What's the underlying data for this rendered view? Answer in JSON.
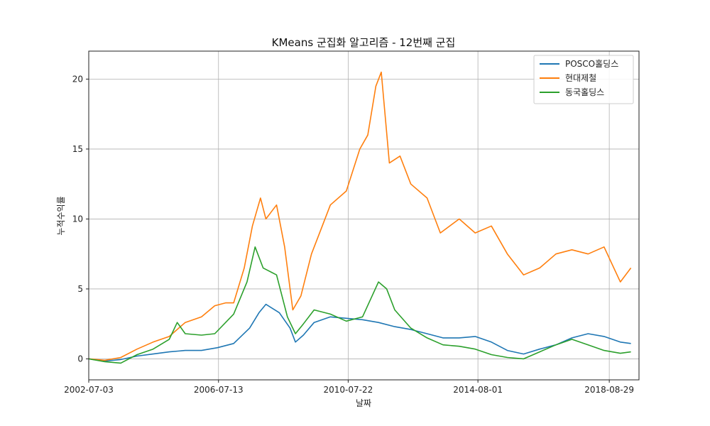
{
  "chart_data": {
    "type": "line",
    "title": "KMeans 군집화 알고리즘 - 12번째 군집",
    "xlabel": "날짜",
    "ylabel": "누적수익률",
    "x_ticks": [
      "2002-07-03",
      "2006-07-13",
      "2010-07-22",
      "2014-08-01",
      "2018-08-29"
    ],
    "y_ticks": [
      0,
      5,
      10,
      15,
      20
    ],
    "y_tick_labels": [
      "0",
      "5",
      "10",
      "15",
      "20"
    ],
    "ylim": [
      -1.5,
      22
    ],
    "x_range": [
      "2002-07-03",
      "2019-08-01"
    ],
    "grid": true,
    "legend_position": "top-right",
    "series": [
      {
        "name": "POSCO홀딩스",
        "color": "#1f77b4",
        "points": [
          [
            "2002-07-03",
            0.0
          ],
          [
            "2003-01-01",
            -0.15
          ],
          [
            "2003-07-01",
            -0.05
          ],
          [
            "2004-01-01",
            0.2
          ],
          [
            "2004-07-01",
            0.35
          ],
          [
            "2005-01-01",
            0.5
          ],
          [
            "2005-07-01",
            0.6
          ],
          [
            "2006-01-01",
            0.6
          ],
          [
            "2006-07-01",
            0.8
          ],
          [
            "2007-01-01",
            1.1
          ],
          [
            "2007-07-01",
            2.2
          ],
          [
            "2007-10-15",
            3.3
          ],
          [
            "2008-01-01",
            3.9
          ],
          [
            "2008-06-01",
            3.3
          ],
          [
            "2008-10-01",
            2.2
          ],
          [
            "2008-12-01",
            1.2
          ],
          [
            "2009-03-01",
            1.7
          ],
          [
            "2009-07-01",
            2.6
          ],
          [
            "2010-01-01",
            3.0
          ],
          [
            "2010-07-01",
            2.9
          ],
          [
            "2011-01-01",
            2.8
          ],
          [
            "2011-07-01",
            2.6
          ],
          [
            "2012-01-01",
            2.3
          ],
          [
            "2012-07-01",
            2.1
          ],
          [
            "2013-01-01",
            1.8
          ],
          [
            "2013-07-01",
            1.5
          ],
          [
            "2014-01-01",
            1.5
          ],
          [
            "2014-07-01",
            1.6
          ],
          [
            "2015-01-01",
            1.2
          ],
          [
            "2015-07-01",
            0.6
          ],
          [
            "2016-01-01",
            0.35
          ],
          [
            "2016-07-01",
            0.7
          ],
          [
            "2017-01-01",
            1.0
          ],
          [
            "2017-07-01",
            1.5
          ],
          [
            "2018-01-01",
            1.8
          ],
          [
            "2018-07-01",
            1.6
          ],
          [
            "2019-01-01",
            1.2
          ],
          [
            "2019-05-01",
            1.1
          ]
        ]
      },
      {
        "name": "현대제철",
        "color": "#ff7f0e",
        "points": [
          [
            "2002-07-03",
            0.0
          ],
          [
            "2003-01-01",
            -0.1
          ],
          [
            "2003-07-01",
            0.1
          ],
          [
            "2004-01-01",
            0.7
          ],
          [
            "2004-07-01",
            1.2
          ],
          [
            "2005-01-01",
            1.6
          ],
          [
            "2005-07-01",
            2.6
          ],
          [
            "2006-01-01",
            3.0
          ],
          [
            "2006-06-01",
            3.8
          ],
          [
            "2006-10-01",
            4.0
          ],
          [
            "2007-01-01",
            4.0
          ],
          [
            "2007-05-01",
            6.5
          ],
          [
            "2007-08-01",
            9.5
          ],
          [
            "2007-11-01",
            11.5
          ],
          [
            "2008-01-01",
            10.0
          ],
          [
            "2008-05-01",
            11.0
          ],
          [
            "2008-08-01",
            8.0
          ],
          [
            "2008-11-01",
            3.5
          ],
          [
            "2009-02-01",
            4.5
          ],
          [
            "2009-06-01",
            7.5
          ],
          [
            "2009-10-01",
            9.5
          ],
          [
            "2010-01-01",
            11.0
          ],
          [
            "2010-07-01",
            12.0
          ],
          [
            "2010-12-01",
            15.0
          ],
          [
            "2011-03-01",
            16.0
          ],
          [
            "2011-06-01",
            19.5
          ],
          [
            "2011-08-01",
            20.5
          ],
          [
            "2011-11-01",
            14.0
          ],
          [
            "2012-03-01",
            14.5
          ],
          [
            "2012-07-01",
            12.5
          ],
          [
            "2013-01-01",
            11.5
          ],
          [
            "2013-06-01",
            9.0
          ],
          [
            "2014-01-01",
            10.0
          ],
          [
            "2014-07-01",
            9.0
          ],
          [
            "2015-01-01",
            9.5
          ],
          [
            "2015-07-01",
            7.5
          ],
          [
            "2016-01-01",
            6.0
          ],
          [
            "2016-07-01",
            6.5
          ],
          [
            "2017-01-01",
            7.5
          ],
          [
            "2017-07-01",
            7.8
          ],
          [
            "2018-01-01",
            7.5
          ],
          [
            "2018-07-01",
            8.0
          ],
          [
            "2019-01-01",
            5.5
          ],
          [
            "2019-05-01",
            6.5
          ]
        ]
      },
      {
        "name": "동국홀딩스",
        "color": "#2ca02c",
        "points": [
          [
            "2002-07-03",
            0.0
          ],
          [
            "2003-01-01",
            -0.2
          ],
          [
            "2003-07-01",
            -0.3
          ],
          [
            "2004-01-01",
            0.3
          ],
          [
            "2004-07-01",
            0.7
          ],
          [
            "2005-01-01",
            1.4
          ],
          [
            "2005-04-01",
            2.6
          ],
          [
            "2005-07-01",
            1.8
          ],
          [
            "2006-01-01",
            1.7
          ],
          [
            "2006-06-01",
            1.8
          ],
          [
            "2007-01-01",
            3.2
          ],
          [
            "2007-06-01",
            5.5
          ],
          [
            "2007-09-01",
            8.0
          ],
          [
            "2007-12-01",
            6.5
          ],
          [
            "2008-05-01",
            6.0
          ],
          [
            "2008-09-01",
            3.0
          ],
          [
            "2008-12-01",
            1.8
          ],
          [
            "2009-03-01",
            2.5
          ],
          [
            "2009-07-01",
            3.5
          ],
          [
            "2010-01-01",
            3.2
          ],
          [
            "2010-07-01",
            2.7
          ],
          [
            "2011-01-01",
            3.0
          ],
          [
            "2011-07-01",
            5.5
          ],
          [
            "2011-10-01",
            5.0
          ],
          [
            "2012-01-01",
            3.5
          ],
          [
            "2012-07-01",
            2.2
          ],
          [
            "2013-01-01",
            1.5
          ],
          [
            "2013-07-01",
            1.0
          ],
          [
            "2014-01-01",
            0.9
          ],
          [
            "2014-07-01",
            0.7
          ],
          [
            "2015-01-01",
            0.3
          ],
          [
            "2015-07-01",
            0.1
          ],
          [
            "2016-01-01",
            0.0
          ],
          [
            "2016-07-01",
            0.5
          ],
          [
            "2017-01-01",
            1.0
          ],
          [
            "2017-07-01",
            1.4
          ],
          [
            "2018-01-01",
            1.0
          ],
          [
            "2018-07-01",
            0.6
          ],
          [
            "2019-01-01",
            0.4
          ],
          [
            "2019-05-01",
            0.5
          ]
        ]
      }
    ]
  }
}
